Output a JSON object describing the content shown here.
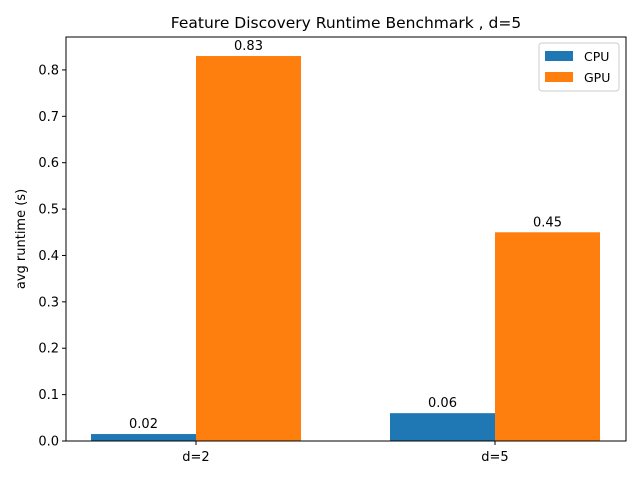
{
  "chart_data": {
    "type": "bar",
    "title": "Feature Discovery Runtime Benchmark , d=5",
    "xlabel": "",
    "ylabel": "avg runtime (s)",
    "categories": [
      "d=2",
      "d=5"
    ],
    "series": [
      {
        "name": "CPU",
        "color": "#1f77b4",
        "values": [
          0.015,
          0.06
        ],
        "labels": [
          "0.02",
          "0.06"
        ]
      },
      {
        "name": "GPU",
        "color": "#ff7f0e",
        "values": [
          0.83,
          0.45
        ],
        "labels": [
          "0.83",
          "0.45"
        ]
      }
    ],
    "ylim": [
      0,
      0.871
    ],
    "yticks": [
      0.0,
      0.1,
      0.2,
      0.3,
      0.4,
      0.5,
      0.6,
      0.7,
      0.8
    ],
    "ytick_labels": [
      "0.0",
      "0.1",
      "0.2",
      "0.3",
      "0.4",
      "0.5",
      "0.6",
      "0.7",
      "0.8"
    ],
    "grid": false,
    "legend_position": "top-right"
  }
}
